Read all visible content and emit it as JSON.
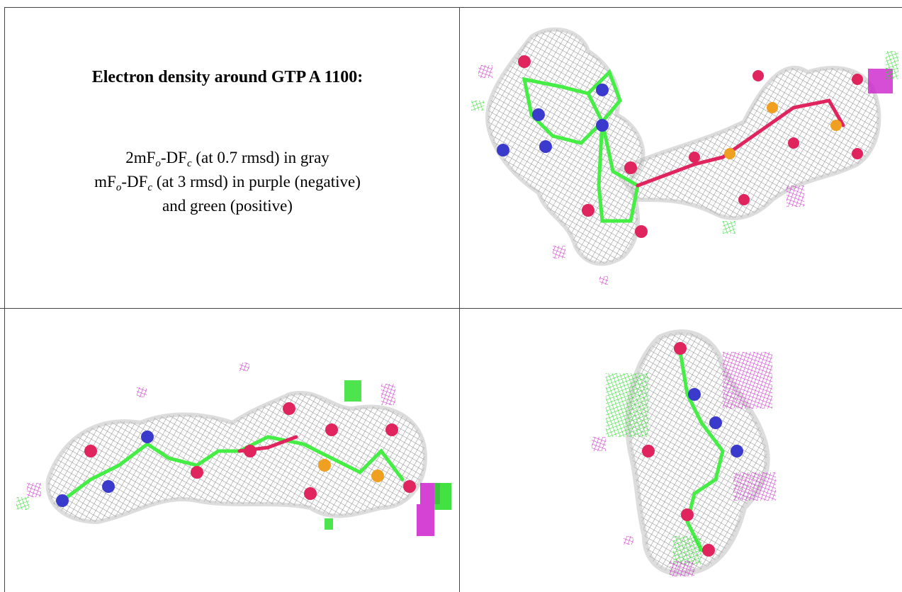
{
  "caption": {
    "title": "Electron density around GTP A 1100:",
    "map1_prefix": "2mF",
    "map1_sub_o": "o",
    "map1_mid": "-DF",
    "map1_sub_c": "c",
    "map1_suffix": " (at 0.7 rmsd) in gray",
    "map2_prefix": "mF",
    "map2_sub_o": "o",
    "map2_mid": "-DF",
    "map2_sub_c": "c",
    "map2_suffix": " (at 3 rmsd) in purple (negative)",
    "map2_line2": "and green (positive)"
  },
  "colors": {
    "density_mesh": "#9a9a9a",
    "negative_difference": "#cc22cc",
    "positive_difference": "#22dd22",
    "carbon": "#44ee44",
    "oxygen": "#e0245e",
    "nitrogen": "#3a3acc",
    "phosphorus": "#f0a020",
    "grid_line": "#444444"
  },
  "panels": [
    {
      "id": "top-right",
      "view": "face-on view of GTP"
    },
    {
      "id": "bottom-left",
      "view": "side view of GTP"
    },
    {
      "id": "bottom-right",
      "view": "end-on view of GTP"
    }
  ]
}
